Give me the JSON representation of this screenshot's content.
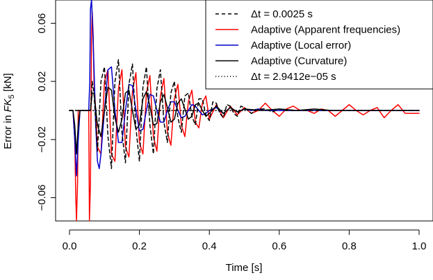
{
  "chart_data": {
    "type": "line",
    "title": "",
    "xlabel": "Time [s]",
    "ylabel": {
      "prefix": "Error in ",
      "var": "FK",
      "sub": "5",
      "suffix": " [kN]"
    },
    "xlim": [
      0,
      1
    ],
    "ylim": [
      -0.076,
      0.076
    ],
    "x_ticks": [
      0.0,
      0.2,
      0.4,
      0.6,
      0.8,
      1.0
    ],
    "x_tick_labels": [
      "0.0",
      "0.2",
      "0.4",
      "0.6",
      "0.8",
      "1.0"
    ],
    "y_ticks": [
      0.06,
      0.02,
      -0.02,
      -0.06
    ],
    "y_tick_labels": [
      "0.06",
      "0.02",
      "−0.02",
      "−0.06"
    ],
    "grid": false,
    "legend_position": "top-right",
    "series": [
      {
        "name": "Δt = 0.0025 s",
        "color": "#000000",
        "dash": "dashed",
        "x": [
          0,
          0.01,
          0.02,
          0.03,
          0.04,
          0.05,
          0.06,
          0.065,
          0.07,
          0.08,
          0.09,
          0.1,
          0.11,
          0.12,
          0.13,
          0.14,
          0.15,
          0.16,
          0.17,
          0.18,
          0.19,
          0.2,
          0.21,
          0.22,
          0.23,
          0.24,
          0.25,
          0.26,
          0.27,
          0.28,
          0.29,
          0.3,
          0.31,
          0.32,
          0.33,
          0.34,
          0.35,
          0.36,
          0.37,
          0.38,
          0.39,
          0.4,
          0.41,
          0.42,
          0.43,
          0.44,
          0.45,
          0.46,
          0.47,
          0.48,
          0.49,
          0.5,
          0.52,
          0.54,
          0.56,
          0.58,
          0.6,
          0.62,
          0.64,
          0.66,
          0.68,
          0.7,
          0.75,
          0.8,
          0.85,
          0.9,
          0.95,
          1.0
        ],
        "y": [
          0,
          0,
          0,
          0,
          0,
          0,
          0,
          0.02,
          0.012,
          -0.028,
          0.02,
          0.03,
          -0.018,
          -0.04,
          0.02,
          0.035,
          -0.015,
          -0.036,
          0.018,
          0.032,
          -0.012,
          -0.035,
          0.016,
          0.03,
          -0.01,
          -0.03,
          0.015,
          0.028,
          -0.008,
          -0.022,
          0.012,
          0.02,
          -0.005,
          -0.015,
          0.01,
          0.012,
          -0.004,
          -0.01,
          0.008,
          0.008,
          -0.003,
          -0.007,
          0.006,
          0.005,
          -0.002,
          -0.005,
          0.004,
          0.003,
          -0.002,
          -0.004,
          0.003,
          0.002,
          -0.002,
          0.001,
          0.001,
          -0.001,
          0.001,
          0.0,
          0.0,
          0.0,
          0.0,
          0.0,
          0.0,
          0.0,
          0.0,
          0.0,
          0.0,
          0.0
        ]
      },
      {
        "name": "Adaptive (Apparent frequencies)",
        "color": "#ff0000",
        "dash": "solid",
        "x": [
          0,
          0.005,
          0.01,
          0.015,
          0.018,
          0.02,
          0.023,
          0.025,
          0.028,
          0.03,
          0.04,
          0.05,
          0.055,
          0.057,
          0.06,
          0.063,
          0.065,
          0.068,
          0.07,
          0.075,
          0.08,
          0.09,
          0.1,
          0.11,
          0.12,
          0.13,
          0.14,
          0.15,
          0.16,
          0.17,
          0.18,
          0.19,
          0.2,
          0.21,
          0.22,
          0.23,
          0.24,
          0.25,
          0.26,
          0.27,
          0.28,
          0.29,
          0.3,
          0.31,
          0.32,
          0.33,
          0.34,
          0.35,
          0.36,
          0.37,
          0.38,
          0.39,
          0.4,
          0.42,
          0.44,
          0.46,
          0.48,
          0.5,
          0.52,
          0.54,
          0.56,
          0.58,
          0.6,
          0.62,
          0.64,
          0.66,
          0.68,
          0.7,
          0.72,
          0.74,
          0.76,
          0.78,
          0.8,
          0.82,
          0.84,
          0.86,
          0.88,
          0.9,
          0.92,
          0.94,
          0.96,
          0.98,
          1.0
        ],
        "y": [
          0,
          0,
          0,
          -0.02,
          -0.06,
          -0.076,
          -0.05,
          0.0,
          0.0,
          0.0,
          0.0,
          0.0,
          0.0,
          -0.076,
          -0.05,
          0.05,
          0.068,
          0.05,
          0.02,
          0.0,
          -0.025,
          -0.03,
          0.02,
          0.028,
          -0.03,
          -0.035,
          0.015,
          0.028,
          -0.025,
          -0.032,
          0.013,
          0.026,
          -0.022,
          -0.03,
          0.012,
          0.024,
          -0.018,
          -0.028,
          0.01,
          0.022,
          -0.015,
          -0.024,
          0.008,
          0.018,
          -0.01,
          -0.018,
          0.006,
          0.014,
          -0.008,
          -0.012,
          0.005,
          0.01,
          -0.006,
          0.004,
          -0.005,
          0.003,
          -0.003,
          0.002,
          -0.002,
          0.0,
          0.005,
          0.0,
          -0.004,
          0.001,
          0.003,
          0.0,
          0.0,
          -0.002,
          0.001,
          0.0,
          -0.004,
          0.0,
          0.004,
          0.0,
          -0.003,
          0.0,
          0.002,
          -0.005,
          0.0,
          0.004,
          -0.002,
          -0.002,
          -0.002
        ]
      },
      {
        "name": "Adaptive (Local error)",
        "color": "#0000cc",
        "dash": "solid",
        "x": [
          0,
          0.005,
          0.01,
          0.015,
          0.02,
          0.025,
          0.03,
          0.04,
          0.05,
          0.055,
          0.058,
          0.06,
          0.063,
          0.066,
          0.07,
          0.075,
          0.08,
          0.085,
          0.09,
          0.1,
          0.11,
          0.12,
          0.13,
          0.14,
          0.15,
          0.16,
          0.17,
          0.18,
          0.19,
          0.2,
          0.21,
          0.22,
          0.23,
          0.24,
          0.25,
          0.26,
          0.27,
          0.28,
          0.29,
          0.3,
          0.31,
          0.32,
          0.33,
          0.34,
          0.35,
          0.36,
          0.37,
          0.38,
          0.39,
          0.4,
          0.42,
          0.44,
          0.46,
          0.48,
          0.5,
          0.52,
          0.54,
          0.56,
          0.58,
          0.6,
          0.65,
          0.7,
          0.75,
          0.8,
          0.85,
          0.9,
          0.95,
          1.0
        ],
        "y": [
          0,
          0,
          0,
          -0.02,
          -0.045,
          -0.02,
          0.0,
          0.0,
          0.0,
          0.0,
          0.02,
          0.07,
          0.076,
          0.06,
          0.03,
          -0.01,
          -0.035,
          -0.04,
          -0.03,
          0.0,
          0.028,
          0.03,
          0.0,
          -0.022,
          -0.022,
          0.0,
          0.018,
          0.017,
          0.0,
          -0.014,
          -0.013,
          0.0,
          0.011,
          0.01,
          0.0,
          -0.008,
          -0.008,
          0.0,
          0.006,
          0.006,
          0.0,
          -0.005,
          -0.004,
          0.0,
          0.004,
          0.003,
          0.0,
          -0.003,
          -0.002,
          0.0,
          0.002,
          -0.002,
          0.002,
          -0.001,
          0.001,
          0.0,
          0.001,
          0.0,
          0.0,
          0.0,
          0.0,
          0.0,
          0.0,
          0.0,
          0.0,
          0.0,
          0.0,
          0.0
        ]
      },
      {
        "name": "Adaptive (Curvature)",
        "color": "#000000",
        "dash": "solid",
        "x": [
          0,
          0.005,
          0.01,
          0.015,
          0.02,
          0.025,
          0.03,
          0.04,
          0.05,
          0.06,
          0.065,
          0.07,
          0.08,
          0.09,
          0.1,
          0.11,
          0.12,
          0.13,
          0.14,
          0.15,
          0.16,
          0.17,
          0.18,
          0.19,
          0.2,
          0.21,
          0.22,
          0.23,
          0.24,
          0.25,
          0.26,
          0.27,
          0.28,
          0.29,
          0.3,
          0.31,
          0.32,
          0.33,
          0.34,
          0.35,
          0.36,
          0.37,
          0.38,
          0.39,
          0.4,
          0.42,
          0.44,
          0.46,
          0.48,
          0.5,
          0.55,
          0.6,
          0.65,
          0.7,
          0.75,
          0.8,
          0.85,
          0.9,
          0.95,
          1.0
        ],
        "y": [
          0,
          0,
          0,
          -0.01,
          -0.03,
          -0.01,
          0.0,
          0.0,
          0.0,
          0.0,
          0.012,
          0.012,
          -0.01,
          -0.018,
          0.0,
          0.016,
          0.014,
          -0.005,
          -0.015,
          -0.006,
          0.012,
          0.014,
          0.0,
          -0.013,
          -0.01,
          0.008,
          0.013,
          0.003,
          -0.01,
          -0.009,
          0.006,
          0.011,
          0.002,
          -0.008,
          -0.006,
          0.005,
          0.008,
          0.001,
          -0.006,
          -0.004,
          0.004,
          0.005,
          0.0,
          -0.004,
          -0.002,
          0.003,
          -0.002,
          0.002,
          -0.001,
          0.001,
          0.0,
          0.001,
          0.0,
          0.001,
          0.0,
          0.0,
          0.0,
          0.0,
          0.0,
          0.0
        ]
      },
      {
        "name": "Δt = 2.9412e−05 s",
        "color": "#000000",
        "dash": "dotted",
        "x": [
          0,
          1.0
        ],
        "y": [
          0,
          0
        ]
      }
    ]
  }
}
